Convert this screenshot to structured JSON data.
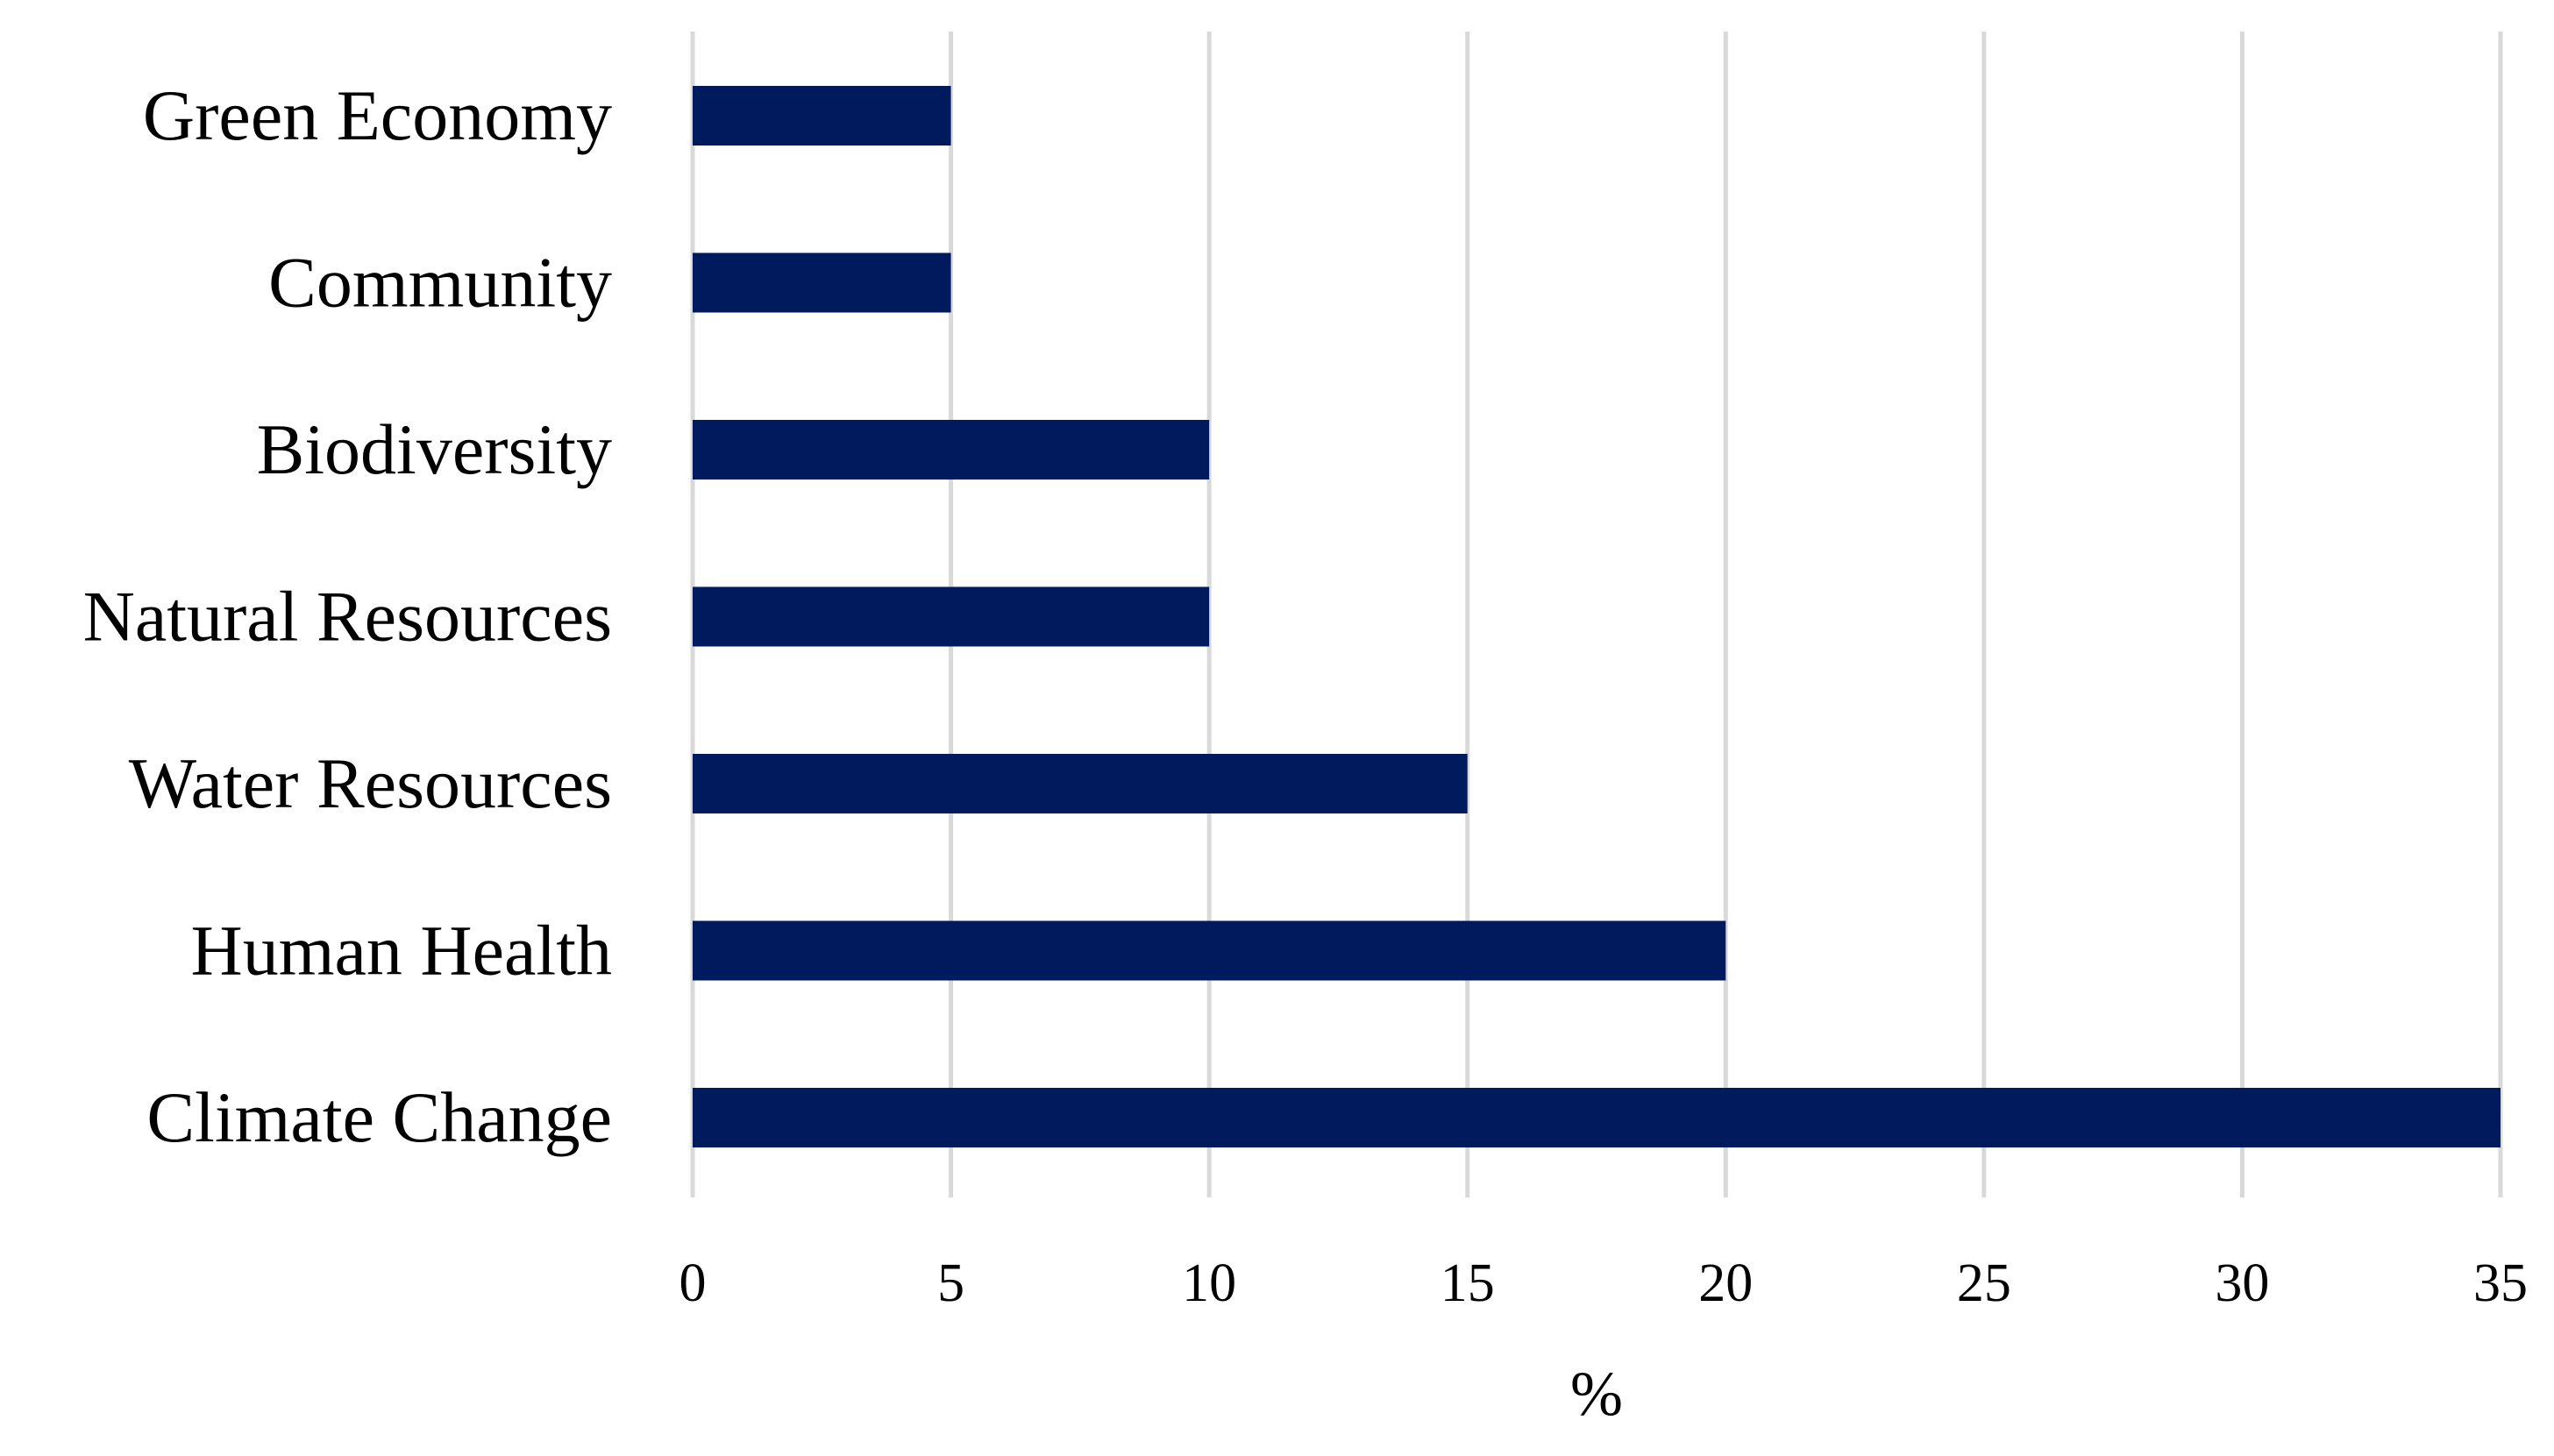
{
  "chart_data": {
    "type": "bar",
    "orientation": "horizontal",
    "categories": [
      "Green Economy",
      "Community",
      "Biodiversity",
      "Natural Resources",
      "Water Resources",
      "Human Health",
      "Climate Change"
    ],
    "values": [
      5,
      5,
      10,
      10,
      15,
      20,
      35
    ],
    "title": "",
    "xlabel": "%",
    "ylabel": "",
    "xlim": [
      0,
      35
    ],
    "x_ticks": [
      "0",
      "5",
      "10",
      "15",
      "20",
      "25",
      "30",
      "35"
    ],
    "grid": "vertical",
    "legend": "none",
    "bar_color": "#001a5e",
    "grid_color": "#d9d9d9"
  }
}
